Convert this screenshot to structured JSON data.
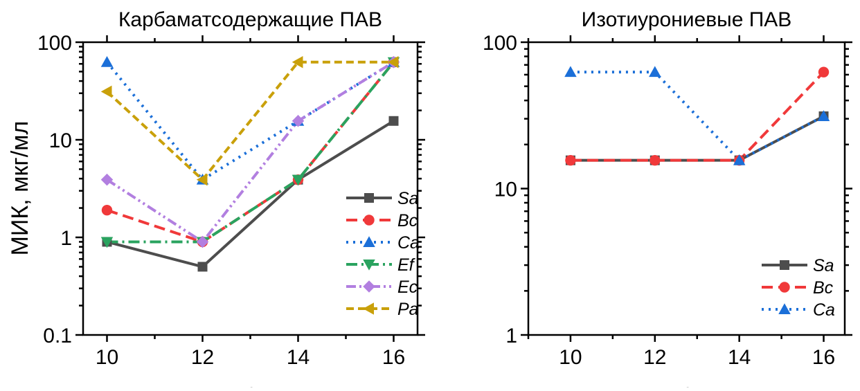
{
  "ylabel": "МИК, мкг/мл",
  "chart_data": [
    {
      "type": "line",
      "title": "Карбаматсодержащие ПАВ",
      "xlabel": "n",
      "ylabel": "МИК, мкг/мл",
      "yscale": "log",
      "xlim": [
        9.5,
        16.5
      ],
      "ylim": [
        0.1,
        100
      ],
      "x_ticks": [
        "10",
        "12",
        "14",
        "16"
      ],
      "y_ticks": [
        "0.1",
        "1",
        "10",
        "100"
      ],
      "legend_position": "bottom-right",
      "series": [
        {
          "name": "Sa",
          "x": [
            10,
            12,
            14,
            16
          ],
          "y": [
            0.9,
            0.5,
            3.9,
            15.6
          ],
          "color": "#4d4d4d",
          "marker": "square",
          "dash": "solid"
        },
        {
          "name": "Bc",
          "x": [
            10,
            12,
            14,
            16
          ],
          "y": [
            1.9,
            0.9,
            3.9,
            62.5
          ],
          "color": "#f0393a",
          "marker": "circle",
          "dash": "dash"
        },
        {
          "name": "Ca",
          "x": [
            10,
            12,
            14,
            16
          ],
          "y": [
            62.5,
            3.9,
            15.6,
            62.5
          ],
          "color": "#1b6fd8",
          "marker": "triangle-up",
          "dash": "dot"
        },
        {
          "name": "Ef",
          "x": [
            10,
            12,
            14,
            16
          ],
          "y": [
            0.9,
            0.9,
            3.9,
            62.5
          ],
          "color": "#2aa35f",
          "marker": "triangle-down",
          "dash": "dashdot"
        },
        {
          "name": "Ec",
          "x": [
            10,
            12,
            14,
            16
          ],
          "y": [
            3.9,
            0.9,
            15.6,
            62.5
          ],
          "color": "#b27fe0",
          "marker": "diamond",
          "dash": "dashdotdot"
        },
        {
          "name": "Pa",
          "x": [
            10,
            12,
            14,
            16
          ],
          "y": [
            31.2,
            3.9,
            62.5,
            62.5
          ],
          "color": "#c9a00a",
          "marker": "triangle-left",
          "dash": "shortdash"
        }
      ]
    },
    {
      "type": "line",
      "title": "Изотиурониевые ПАВ",
      "xlabel": "n",
      "ylabel": "",
      "yscale": "log",
      "xlim": [
        9,
        16.5
      ],
      "ylim": [
        1,
        100
      ],
      "x_ticks": [
        "10",
        "12",
        "14",
        "16"
      ],
      "y_ticks": [
        "1",
        "10",
        "100"
      ],
      "legend_position": "bottom-right",
      "series": [
        {
          "name": "Sa",
          "x": [
            10,
            12,
            14,
            16
          ],
          "y": [
            15.6,
            15.6,
            15.6,
            31.2
          ],
          "color": "#4d4d4d",
          "marker": "square",
          "dash": "solid"
        },
        {
          "name": "Bc",
          "x": [
            10,
            12,
            14,
            16
          ],
          "y": [
            15.6,
            15.6,
            15.6,
            62.5
          ],
          "color": "#f0393a",
          "marker": "circle",
          "dash": "dash"
        },
        {
          "name": "Ca",
          "x": [
            10,
            12,
            14,
            16
          ],
          "y": [
            62.5,
            62.5,
            15.6,
            31.2
          ],
          "color": "#1b6fd8",
          "marker": "triangle-up",
          "dash": "dot"
        }
      ]
    }
  ]
}
